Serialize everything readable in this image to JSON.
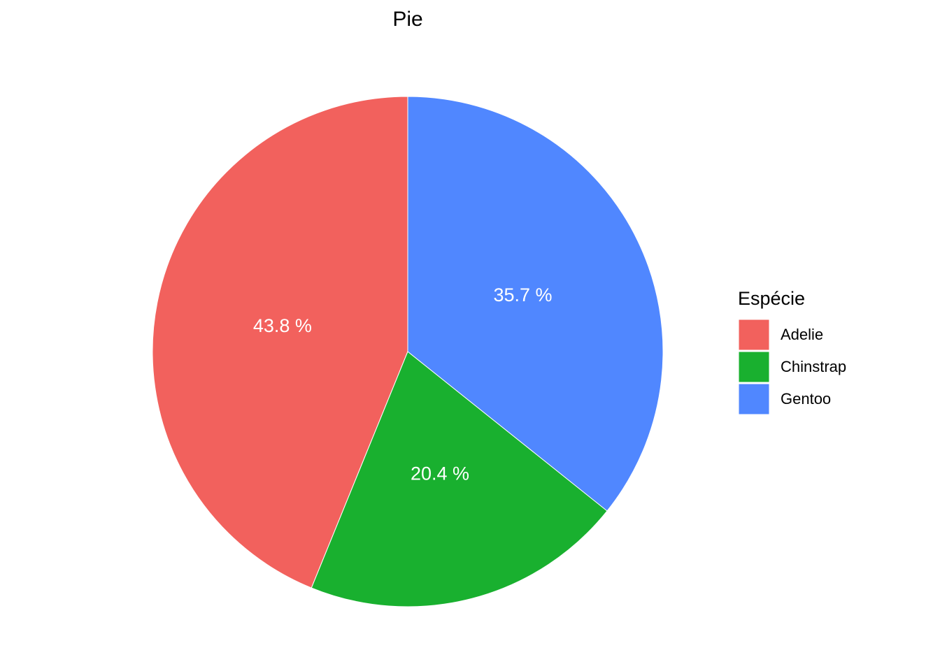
{
  "chart_data": {
    "type": "pie",
    "title": "Pie",
    "categories": [
      "Adelie",
      "Chinstrap",
      "Gentoo"
    ],
    "values": [
      43.8,
      20.4,
      35.7
    ],
    "value_labels": [
      "43.8 %",
      "20.4 %",
      "35.7 %"
    ],
    "colors": [
      "#f2615d",
      "#19b02f",
      "#5087ff"
    ],
    "legend_title": "Espécie",
    "legend": "right"
  }
}
